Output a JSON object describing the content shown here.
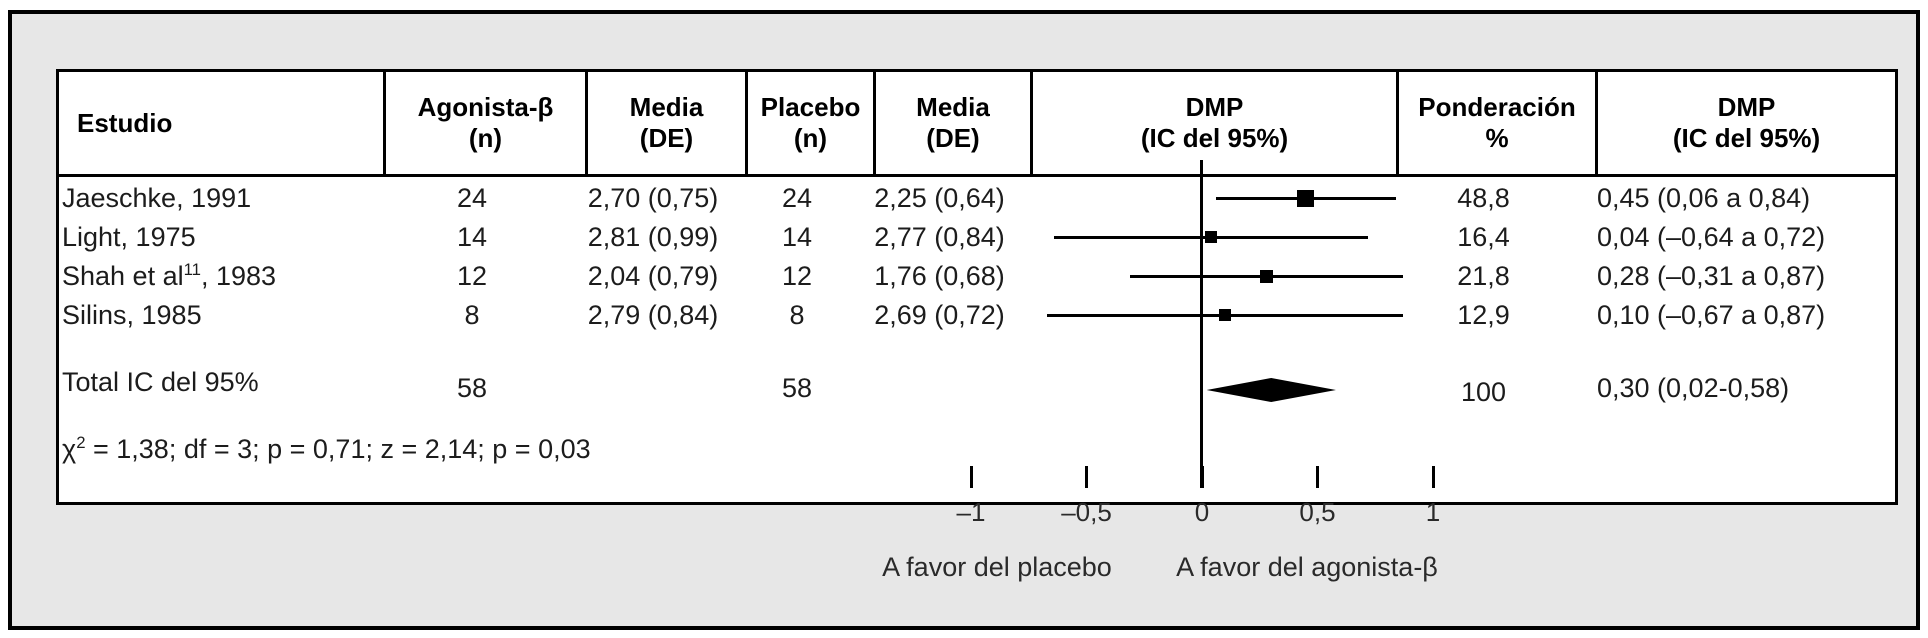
{
  "header": {
    "columns": [
      {
        "l1": "Estudio",
        "l2": ""
      },
      {
        "l1": "Agonista-β",
        "l2": "(n)"
      },
      {
        "l1": "Media",
        "l2": "(DE)"
      },
      {
        "l1": "Placebo",
        "l2": "(n)"
      },
      {
        "l1": "Media",
        "l2": "(DE)"
      },
      {
        "l1": "DMP",
        "l2": "(IC del 95%)"
      },
      {
        "l1": "Ponderación",
        "l2": "%"
      },
      {
        "l1": "DMP",
        "l2": "(IC del 95%)"
      }
    ]
  },
  "chart_data": {
    "type": "forest",
    "title": "",
    "x_axis": {
      "xlim": [
        -1.15,
        1.25
      ],
      "ticks": [
        -1,
        -0.5,
        0,
        0.5,
        1
      ],
      "tick_labels": [
        "–1",
        "–0,5",
        "0",
        "0,5",
        "1"
      ],
      "zero_line": 0,
      "left_label": "A favor del placebo",
      "right_label": "A favor del agonista-β"
    },
    "studies": [
      {
        "study": "Jaeschke, 1991",
        "study_sup": "",
        "study_suffix": "",
        "agonist_n": "24",
        "agonist_mean_sd": "2,70 (0,75)",
        "placebo_n": "24",
        "placebo_mean_sd": "2,25 (0,64)",
        "dmp": 0.45,
        "ci_low": 0.06,
        "ci_high": 0.84,
        "weight_pct": "48,8",
        "dmp_ci_text": "0,45 (0,06 a 0,84)",
        "marker_size": 17
      },
      {
        "study": "Light, 1975",
        "study_sup": "",
        "study_suffix": "",
        "agonist_n": "14",
        "agonist_mean_sd": "2,81 (0,99)",
        "placebo_n": "14",
        "placebo_mean_sd": "2,77 (0,84)",
        "dmp": 0.04,
        "ci_low": -0.64,
        "ci_high": 0.72,
        "weight_pct": "16,4",
        "dmp_ci_text": "0,04 (–0,64 a 0,72)",
        "marker_size": 12
      },
      {
        "study": "Shah et al",
        "study_sup": "11",
        "study_suffix": ", 1983",
        "agonist_n": "12",
        "agonist_mean_sd": "2,04 (0,79)",
        "placebo_n": "12",
        "placebo_mean_sd": "1,76 (0,68)",
        "dmp": 0.28,
        "ci_low": -0.31,
        "ci_high": 0.87,
        "weight_pct": "21,8",
        "dmp_ci_text": "0,28 (–0,31 a 0,87)",
        "marker_size": 13
      },
      {
        "study": "Silins, 1985",
        "study_sup": "",
        "study_suffix": "",
        "agonist_n": "8",
        "agonist_mean_sd": "2,79 (0,84)",
        "placebo_n": "8",
        "placebo_mean_sd": "2,69 (0,72)",
        "dmp": 0.1,
        "ci_low": -0.67,
        "ci_high": 0.87,
        "weight_pct": "12,9",
        "dmp_ci_text": "0,10 (–0,67 a 0,87)",
        "marker_size": 12
      }
    ],
    "total": {
      "label": "Total IC del 95%",
      "agonist_n": "58",
      "placebo_n": "58",
      "dmp": 0.3,
      "ci_low": 0.02,
      "ci_high": 0.58,
      "weight_pct": "100",
      "dmp_ci_text": "0,30 (0,02-0,58)"
    },
    "stats": {
      "chi_symbol": "χ",
      "chi_sup": "2",
      "text": " = 1,38; df = 3; p = 0,71; z = 2,14; p = 0,03"
    }
  }
}
